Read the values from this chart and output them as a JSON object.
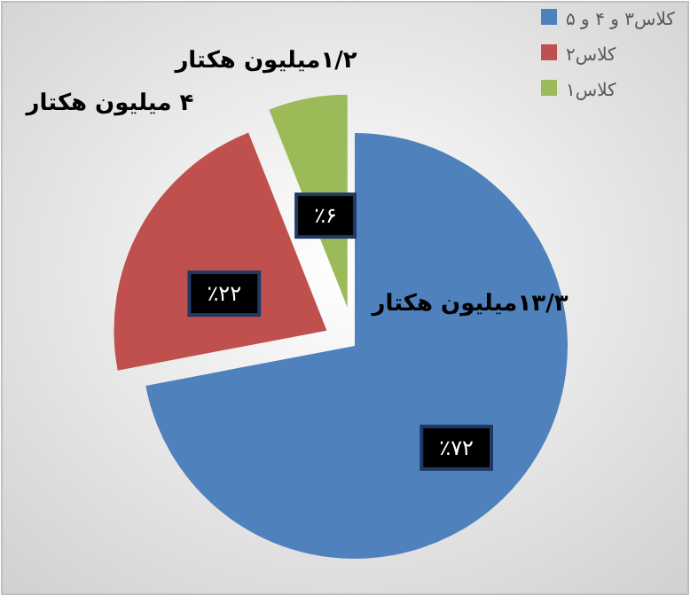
{
  "chart_data": {
    "type": "pie",
    "categories": [
      "کلاس۳ و ۴ و ۵",
      "کلاس۲",
      "کلاس۱"
    ],
    "values": [
      72,
      22,
      6
    ],
    "colors": [
      "#4f81bd",
      "#c0504d",
      "#9bbb59"
    ],
    "value_labels": [
      "٪۷۲",
      "٪۲۲",
      "٪۶"
    ],
    "annotations": [
      "۱۳/۳میلیون هکتار",
      "۴ میلیون هکتار",
      "۱/۲میلیون هکتار"
    ],
    "legend": "top right"
  }
}
